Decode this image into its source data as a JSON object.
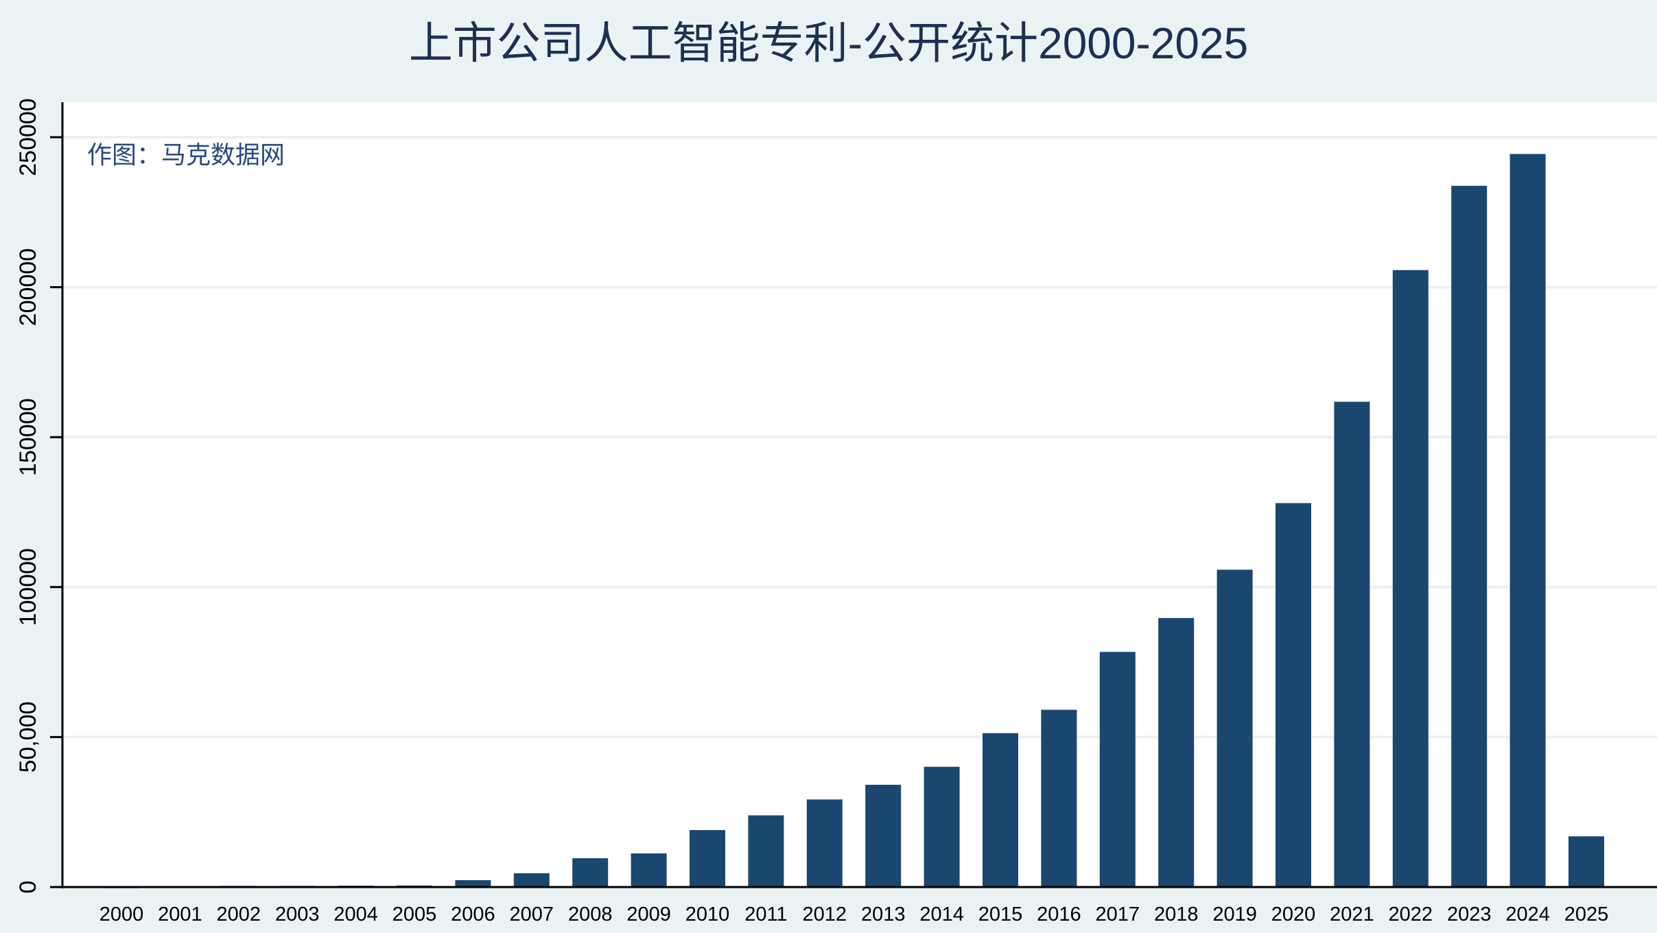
{
  "chart_data": {
    "type": "bar",
    "title": "上市公司人工智能专利-公开统计2000-2025",
    "annotation": "作图：马克数据网",
    "xlabel": "",
    "ylabel": "",
    "categories": [
      "2000",
      "2001",
      "2002",
      "2003",
      "2004",
      "2005",
      "2006",
      "2007",
      "2008",
      "2009",
      "2010",
      "2011",
      "2012",
      "2013",
      "2014",
      "2015",
      "2016",
      "2017",
      "2018",
      "2019",
      "2020",
      "2021",
      "2022",
      "2023",
      "2024",
      "2025"
    ],
    "values": [
      300,
      350,
      400,
      400,
      450,
      500,
      2300,
      4600,
      9600,
      11200,
      19000,
      23900,
      29200,
      34100,
      40100,
      51300,
      59100,
      78400,
      89700,
      105800,
      128000,
      161800,
      205700,
      233800,
      244400,
      16900
    ],
    "ylim": [
      0,
      260000
    ],
    "yticks": [
      0,
      50000,
      100000,
      150000,
      200000,
      250000
    ],
    "ytick_labels": [
      "0",
      "50,000",
      "100000",
      "150000",
      "200000",
      "250000"
    ],
    "grid": true,
    "legend": "none",
    "colors": {
      "bar": "#1a476f",
      "background": "#eaf2f3",
      "plot": "#ffffff",
      "grid": "#eaf2f3",
      "text": "#1e3050"
    }
  }
}
